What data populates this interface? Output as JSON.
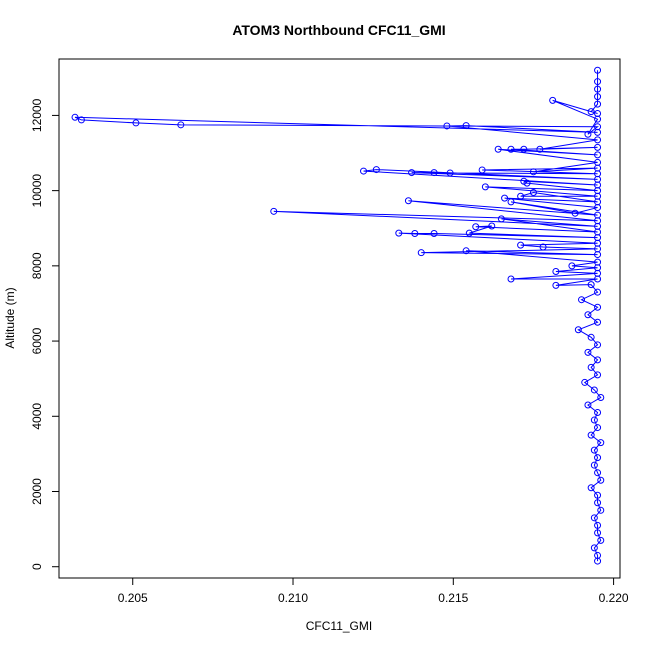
{
  "chart_data": {
    "type": "line",
    "title": "ATOM3 Northbound CFC11_GMI",
    "xlabel": "CFC11_GMI",
    "ylabel": "Altitude (m)",
    "xlim": [
      0.2027,
      0.2202
    ],
    "ylim": [
      -300,
      13500
    ],
    "x_ticks": [
      0.205,
      0.21,
      0.215,
      0.22
    ],
    "x_tick_labels": [
      "0.205",
      "0.210",
      "0.215",
      "0.220"
    ],
    "y_ticks": [
      0,
      2000,
      4000,
      6000,
      8000,
      10000,
      12000
    ],
    "y_tick_labels": [
      "0",
      "2000",
      "4000",
      "6000",
      "8000",
      "10000",
      "12000"
    ],
    "grid": false,
    "series": [
      {
        "color": "#0000ff",
        "marker": "open-circle",
        "points": [
          [
            0.2195,
            150
          ],
          [
            0.2195,
            300
          ],
          [
            0.2194,
            500
          ],
          [
            0.2196,
            700
          ],
          [
            0.2195,
            900
          ],
          [
            0.2195,
            1100
          ],
          [
            0.2194,
            1300
          ],
          [
            0.2196,
            1500
          ],
          [
            0.2195,
            1700
          ],
          [
            0.2195,
            1900
          ],
          [
            0.2193,
            2100
          ],
          [
            0.2196,
            2300
          ],
          [
            0.2195,
            2500
          ],
          [
            0.2194,
            2700
          ],
          [
            0.2195,
            2900
          ],
          [
            0.2194,
            3100
          ],
          [
            0.2196,
            3300
          ],
          [
            0.2193,
            3500
          ],
          [
            0.2195,
            3700
          ],
          [
            0.2194,
            3900
          ],
          [
            0.2195,
            4100
          ],
          [
            0.2192,
            4300
          ],
          [
            0.2196,
            4500
          ],
          [
            0.2194,
            4700
          ],
          [
            0.2191,
            4900
          ],
          [
            0.2195,
            5100
          ],
          [
            0.2193,
            5300
          ],
          [
            0.2195,
            5500
          ],
          [
            0.2192,
            5700
          ],
          [
            0.2195,
            5900
          ],
          [
            0.2193,
            6100
          ],
          [
            0.2189,
            6300
          ],
          [
            0.2195,
            6500
          ],
          [
            0.2192,
            6700
          ],
          [
            0.2195,
            6900
          ],
          [
            0.219,
            7100
          ],
          [
            0.2195,
            7300
          ],
          [
            0.2193,
            7500
          ],
          [
            0.2182,
            7480
          ],
          [
            0.2195,
            7650
          ],
          [
            0.2168,
            7650
          ],
          [
            0.2195,
            7800
          ],
          [
            0.2182,
            7850
          ],
          [
            0.2195,
            7950
          ],
          [
            0.2187,
            8000
          ],
          [
            0.2195,
            8100
          ],
          [
            0.2154,
            8400
          ],
          [
            0.2195,
            8300
          ],
          [
            0.214,
            8350
          ],
          [
            0.2195,
            8450
          ],
          [
            0.2178,
            8500
          ],
          [
            0.2171,
            8550
          ],
          [
            0.2195,
            8600
          ],
          [
            0.2133,
            8870
          ],
          [
            0.2138,
            8860
          ],
          [
            0.2144,
            8860
          ],
          [
            0.2195,
            8750
          ],
          [
            0.2155,
            8870
          ],
          [
            0.2162,
            9060
          ],
          [
            0.2157,
            9040
          ],
          [
            0.2195,
            8900
          ],
          [
            0.2165,
            9250
          ],
          [
            0.2195,
            9050
          ],
          [
            0.2094,
            9450
          ],
          [
            0.2195,
            9200
          ],
          [
            0.2136,
            9730
          ],
          [
            0.2195,
            9350
          ],
          [
            0.2168,
            9700
          ],
          [
            0.2188,
            9400
          ],
          [
            0.2195,
            9550
          ],
          [
            0.2166,
            9800
          ],
          [
            0.2195,
            9700
          ],
          [
            0.2175,
            9950
          ],
          [
            0.2171,
            9850
          ],
          [
            0.2195,
            9850
          ],
          [
            0.216,
            10100
          ],
          [
            0.2195,
            10000
          ],
          [
            0.2173,
            10200
          ],
          [
            0.2172,
            10250
          ],
          [
            0.2195,
            10150
          ],
          [
            0.2122,
            10520
          ],
          [
            0.2126,
            10560
          ],
          [
            0.2195,
            10300
          ],
          [
            0.2137,
            10480
          ],
          [
            0.2144,
            10480
          ],
          [
            0.2149,
            10470
          ],
          [
            0.2195,
            10450
          ],
          [
            0.2159,
            10550
          ],
          [
            0.2195,
            10600
          ],
          [
            0.2175,
            10500
          ],
          [
            0.2195,
            10750
          ],
          [
            0.2164,
            11100
          ],
          [
            0.2195,
            10950
          ],
          [
            0.2168,
            11100
          ],
          [
            0.2172,
            11100
          ],
          [
            0.2195,
            11150
          ],
          [
            0.2177,
            11100
          ],
          [
            0.2195,
            11350
          ],
          [
            0.2148,
            11720
          ],
          [
            0.2154,
            11730
          ],
          [
            0.2195,
            11550
          ],
          [
            0.2032,
            11950
          ],
          [
            0.2034,
            11880
          ],
          [
            0.2051,
            11800
          ],
          [
            0.2065,
            11750
          ],
          [
            0.2195,
            11700
          ],
          [
            0.2192,
            11500
          ],
          [
            0.2195,
            11900
          ],
          [
            0.2181,
            12400
          ],
          [
            0.2195,
            12050
          ],
          [
            0.2193,
            12100
          ],
          [
            0.2195,
            12300
          ],
          [
            0.2195,
            12500
          ],
          [
            0.2195,
            12700
          ],
          [
            0.2195,
            12900
          ],
          [
            0.2195,
            13200
          ]
        ]
      }
    ]
  }
}
